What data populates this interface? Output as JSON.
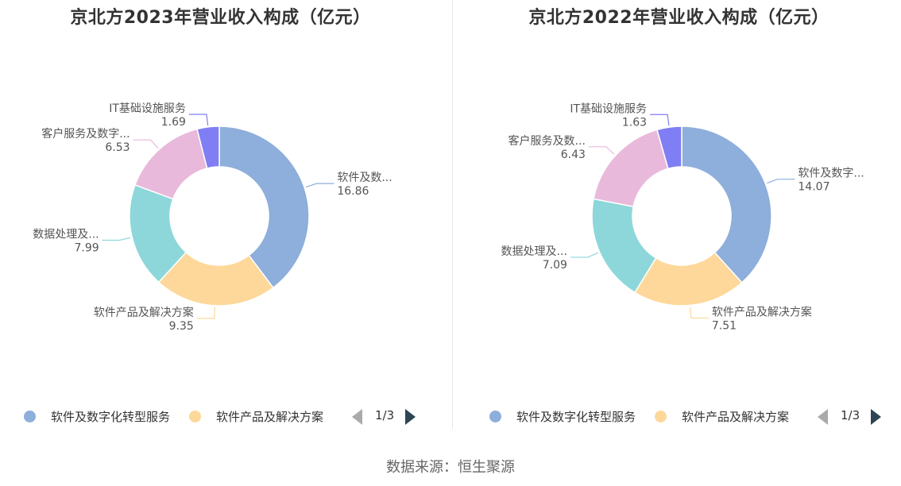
{
  "source": "数据来源：恒生聚源",
  "legend_colors": [
    "#8eaedb",
    "#fdd89a",
    "#8dd7da",
    "#e8b9da",
    "#7f7ef5"
  ],
  "chart_data": [
    {
      "type": "pie",
      "title": "京北方2023年营业收入构成（亿元）",
      "categories": [
        "软件及数字化转型服务",
        "软件产品及解决方案",
        "数据处理及数字化运营服务",
        "客户服务及数字化营销服务",
        "IT基础设施服务"
      ],
      "display_labels": [
        "软件及数...",
        "软件产品及解决方案",
        "数据处理及...",
        "客户服务及数字...",
        "IT基础设施服务"
      ],
      "value_labels": [
        "16.86",
        "9.35",
        "7.99",
        "6.53",
        "1.69"
      ],
      "values": [
        16.86,
        9.35,
        7.99,
        6.53,
        1.69
      ],
      "legend": {
        "items": [
          "软件及数字化转型服务",
          "软件产品及解决方案"
        ],
        "page": "1/3",
        "position": "bottom"
      }
    },
    {
      "type": "pie",
      "title": "京北方2022年营业收入构成（亿元）",
      "categories": [
        "软件及数字化转型服务",
        "软件产品及解决方案",
        "数据处理及数字化运营服务",
        "客户服务及数字化营销服务",
        "IT基础设施服务"
      ],
      "display_labels": [
        "软件及数字...",
        "软件产品及解决方案",
        "数据处理及...",
        "客户服务及数...",
        "IT基础设施服务"
      ],
      "value_labels": [
        "14.07",
        "7.51",
        "7.09",
        "6.43",
        "1.63"
      ],
      "values": [
        14.07,
        7.51,
        7.09,
        6.43,
        1.63
      ],
      "legend": {
        "items": [
          "软件及数字化转型服务",
          "软件产品及解决方案"
        ],
        "page": "1/3",
        "position": "bottom"
      }
    }
  ]
}
